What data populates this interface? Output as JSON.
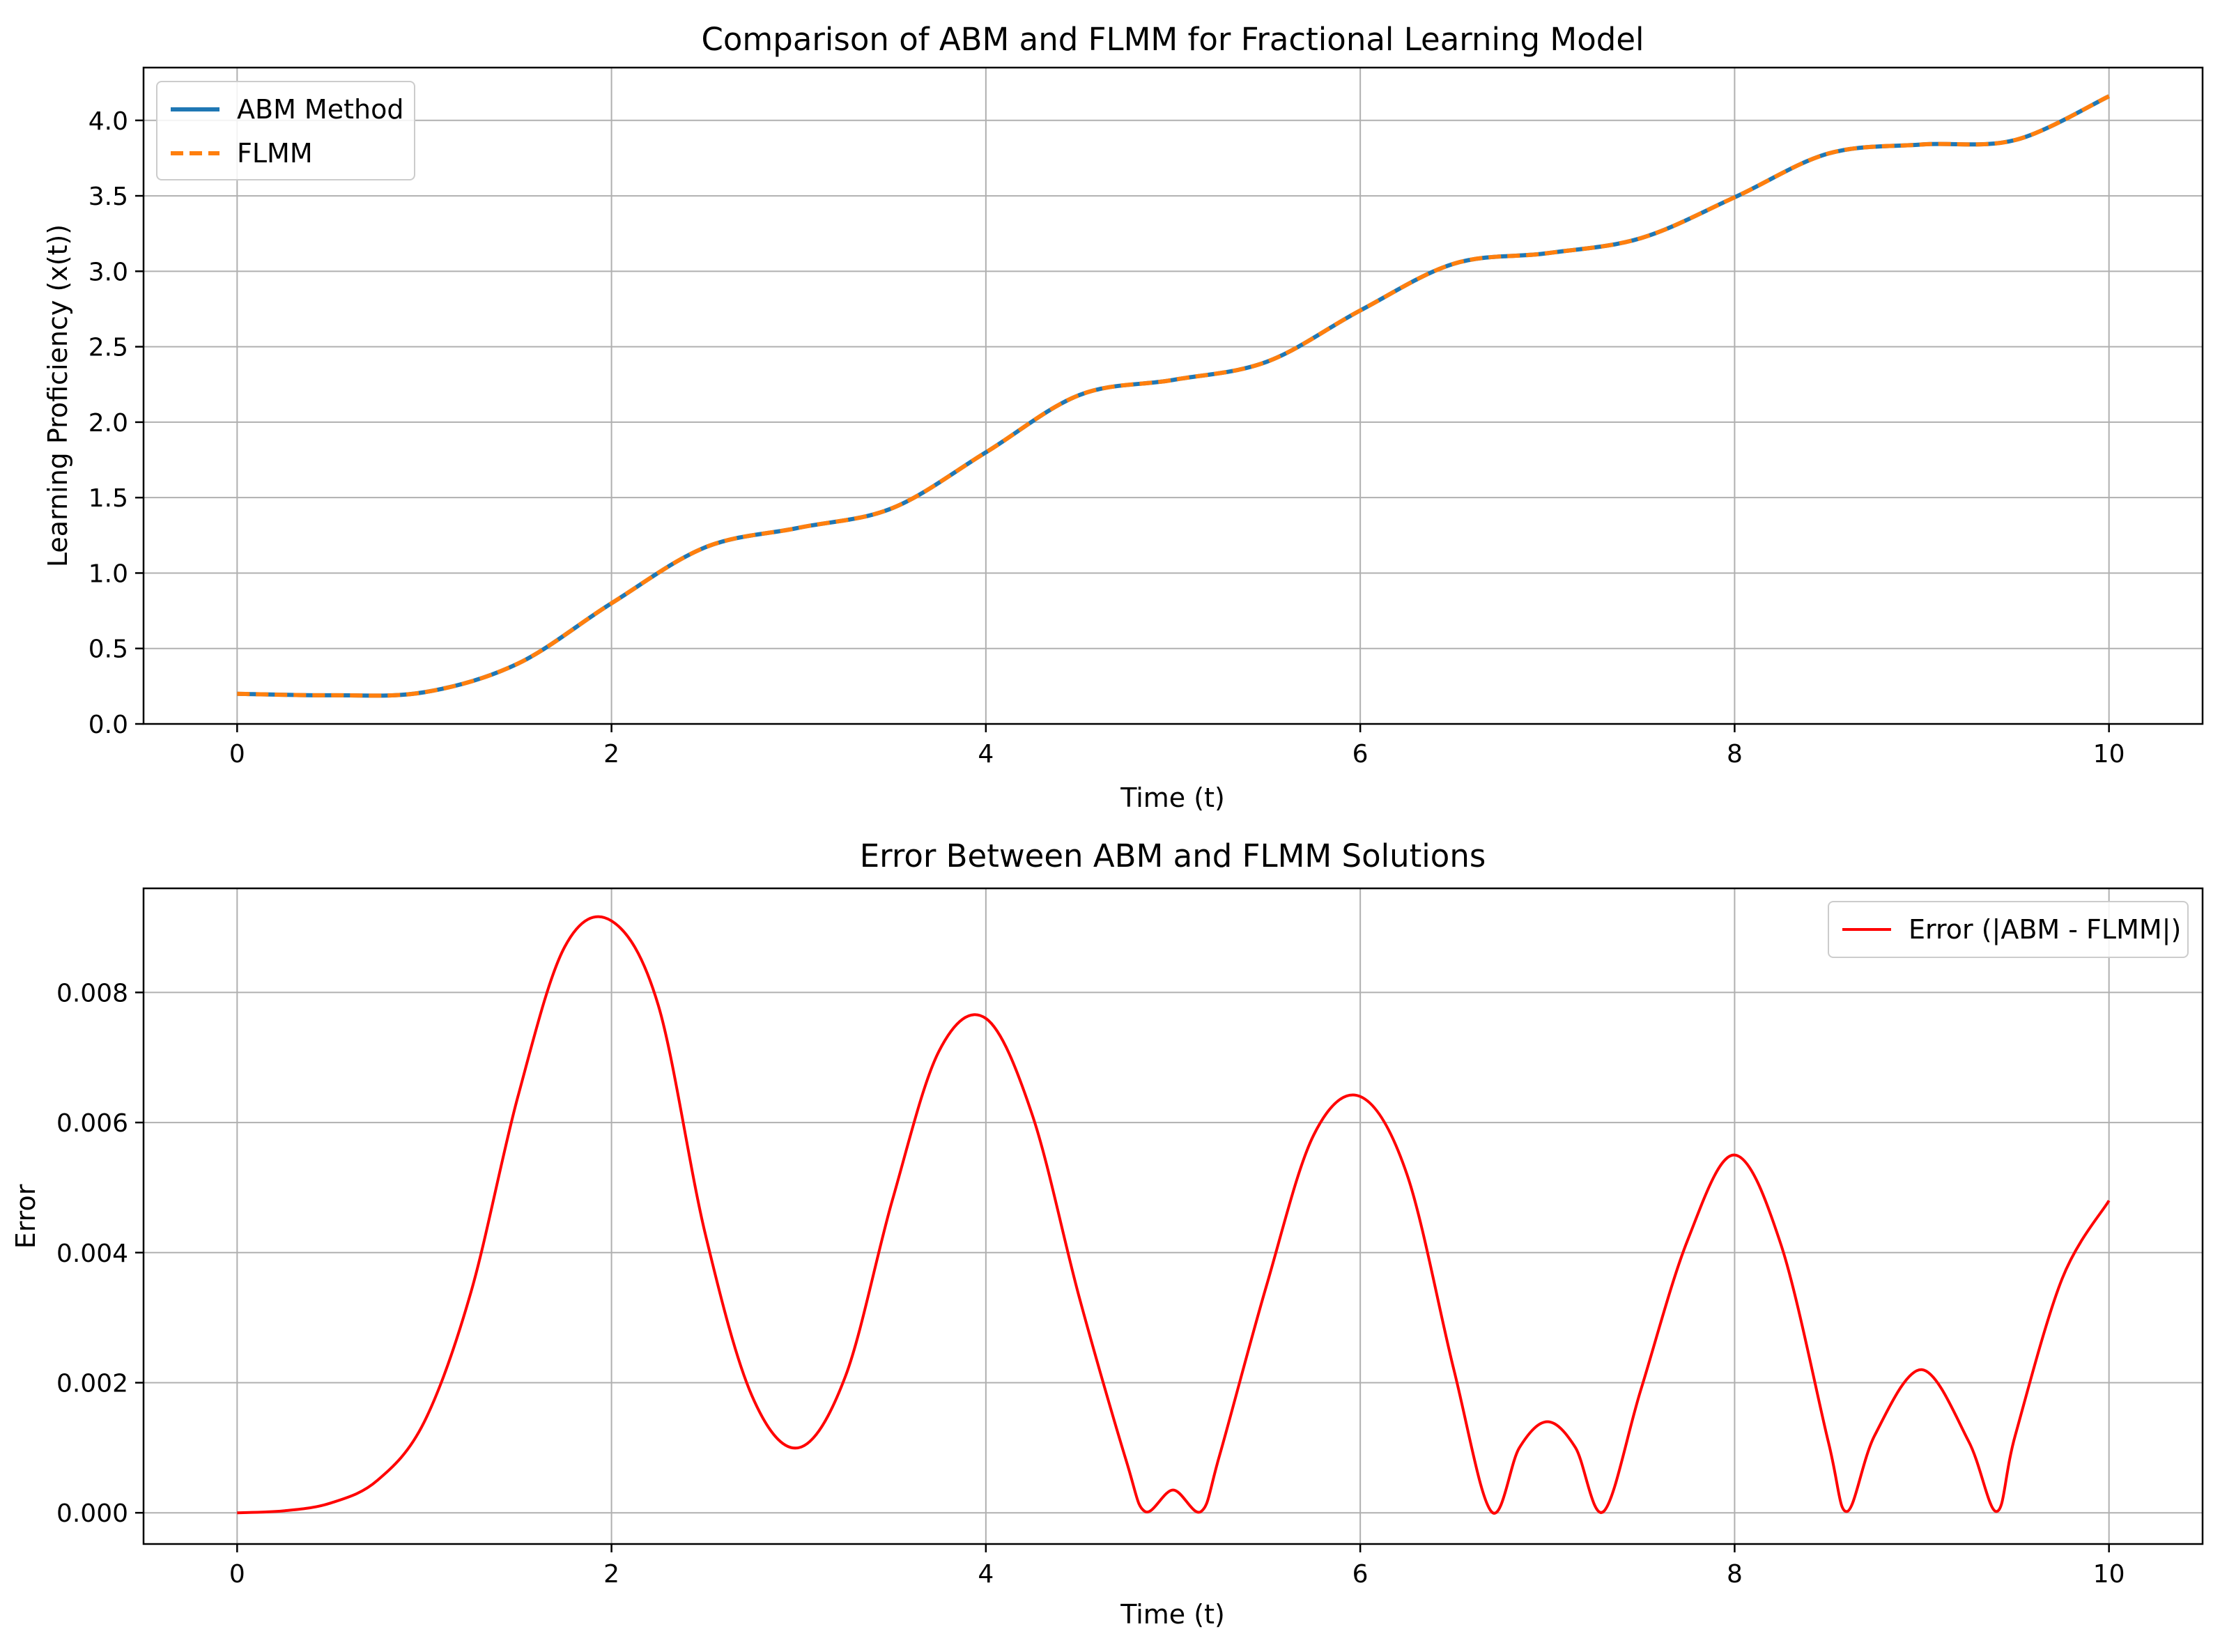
{
  "chart_data": [
    {
      "type": "line",
      "title": "Comparison of ABM and FLMM for Fractional Learning Model",
      "xlabel": "Time (t)",
      "ylabel": "Learning Proficiency (x(t))",
      "xlim": [
        -0.5,
        10.5
      ],
      "ylim": [
        0,
        4.35
      ],
      "xticks": [
        "0",
        "2",
        "4",
        "6",
        "8",
        "10"
      ],
      "yticks": [
        "0.0",
        "0.5",
        "1.0",
        "1.5",
        "2.0",
        "2.5",
        "3.0",
        "3.5",
        "4.0"
      ],
      "grid": true,
      "legend_position": "upper left",
      "x": [
        0,
        0.5,
        1.0,
        1.5,
        2.0,
        2.5,
        3.0,
        3.5,
        4.0,
        4.5,
        5.0,
        5.5,
        6.0,
        6.5,
        7.0,
        7.5,
        8.0,
        8.5,
        9.0,
        9.5,
        10.0
      ],
      "series": [
        {
          "name": "ABM Method",
          "color": "#1f77b4",
          "style": "solid",
          "values": [
            0.2,
            0.19,
            0.21,
            0.4,
            0.8,
            1.17,
            1.3,
            1.43,
            1.8,
            2.18,
            2.28,
            2.4,
            2.74,
            3.05,
            3.12,
            3.22,
            3.49,
            3.78,
            3.84,
            3.87,
            4.16
          ]
        },
        {
          "name": "FLMM",
          "color": "#ff7f0e",
          "style": "dashed",
          "values": [
            0.2,
            0.19,
            0.21,
            0.4,
            0.8,
            1.17,
            1.3,
            1.43,
            1.8,
            2.18,
            2.28,
            2.4,
            2.74,
            3.05,
            3.12,
            3.22,
            3.49,
            3.78,
            3.84,
            3.87,
            4.16
          ]
        }
      ]
    },
    {
      "type": "line",
      "title": "Error Between ABM and FLMM Solutions",
      "xlabel": "Time (t)",
      "ylabel": "Error",
      "xlim": [
        -0.5,
        10.5
      ],
      "ylim": [
        -0.00048,
        0.0096
      ],
      "xticks": [
        "0",
        "2",
        "4",
        "6",
        "8",
        "10"
      ],
      "yticks": [
        "0.000",
        "0.002",
        "0.004",
        "0.006",
        "0.008"
      ],
      "grid": true,
      "legend_position": "upper right",
      "x": [
        0,
        0.25,
        0.5,
        0.75,
        1.0,
        1.25,
        1.5,
        1.75,
        2.0,
        2.25,
        2.5,
        2.75,
        3.0,
        3.25,
        3.5,
        3.75,
        4.0,
        4.25,
        4.5,
        4.75,
        4.85,
        5.0,
        5.15,
        5.25,
        5.5,
        5.75,
        6.0,
        6.25,
        6.5,
        6.7,
        6.85,
        7.0,
        7.15,
        7.3,
        7.5,
        7.75,
        8.0,
        8.25,
        8.5,
        8.6,
        8.75,
        9.0,
        9.25,
        9.4,
        9.5,
        9.75,
        10.0
      ],
      "series": [
        {
          "name": "Error (|ABM - FLMM|)",
          "color": "#ff0000",
          "style": "solid",
          "values": [
            0,
            3e-05,
            0.00015,
            0.0005,
            0.0014,
            0.0034,
            0.0064,
            0.0087,
            0.0091,
            0.0078,
            0.0043,
            0.0018,
            0.001,
            0.0021,
            0.0048,
            0.0071,
            0.0076,
            0.0061,
            0.0033,
            0.0008,
            2e-05,
            0.00035,
            2e-05,
            0.0009,
            0.0035,
            0.0058,
            0.0064,
            0.0052,
            0.0022,
            2e-05,
            0.001,
            0.0014,
            0.001,
            2e-05,
            0.0019,
            0.0042,
            0.0055,
            0.0041,
            0.0011,
            2e-05,
            0.0012,
            0.0022,
            0.0011,
            2e-05,
            0.0012,
            0.0036,
            0.0048
          ]
        }
      ]
    }
  ]
}
